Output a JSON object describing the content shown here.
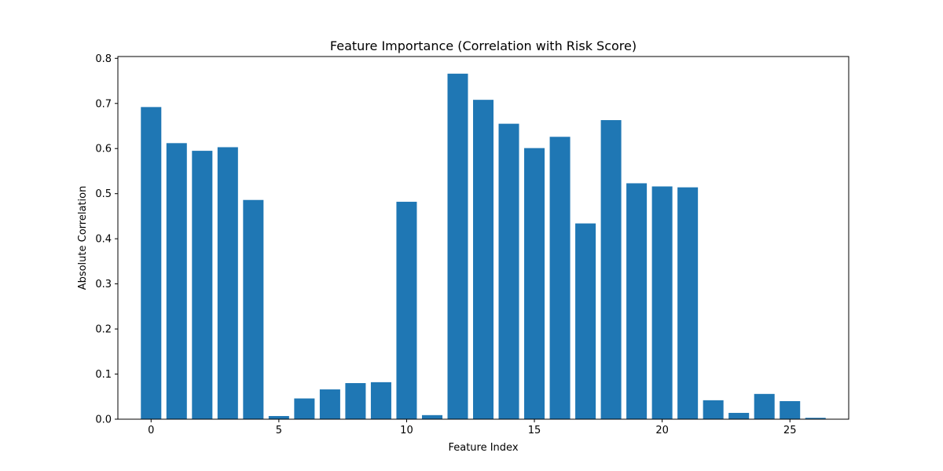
{
  "colors": {
    "bar": "#1f77b4"
  },
  "chart_data": {
    "type": "bar",
    "title": "Feature Importance (Correlation with Risk Score)",
    "xlabel": "Feature Index",
    "ylabel": "Absolute Correlation",
    "categories": [
      0,
      1,
      2,
      3,
      4,
      5,
      6,
      7,
      8,
      9,
      10,
      11,
      12,
      13,
      14,
      15,
      16,
      17,
      18,
      19,
      20,
      21,
      22,
      23,
      24,
      25,
      26
    ],
    "values": [
      0.692,
      0.612,
      0.595,
      0.603,
      0.486,
      0.007,
      0.046,
      0.066,
      0.08,
      0.082,
      0.482,
      0.009,
      0.766,
      0.708,
      0.655,
      0.601,
      0.626,
      0.434,
      0.663,
      0.523,
      0.516,
      0.514,
      0.042,
      0.014,
      0.056,
      0.04,
      0.003
    ],
    "xlim": [
      -1.3,
      27.3
    ],
    "ylim": [
      0,
      0.804
    ],
    "xticks": [
      0,
      5,
      10,
      15,
      20,
      25
    ],
    "xtick_labels": [
      "0",
      "5",
      "10",
      "15",
      "20",
      "25"
    ],
    "yticks": [
      0.0,
      0.1,
      0.2,
      0.3,
      0.4,
      0.5,
      0.6,
      0.7,
      0.8
    ],
    "ytick_labels": [
      "0.0",
      "0.1",
      "0.2",
      "0.3",
      "0.4",
      "0.5",
      "0.6",
      "0.7",
      "0.8"
    ],
    "grid": false,
    "legend": false
  }
}
